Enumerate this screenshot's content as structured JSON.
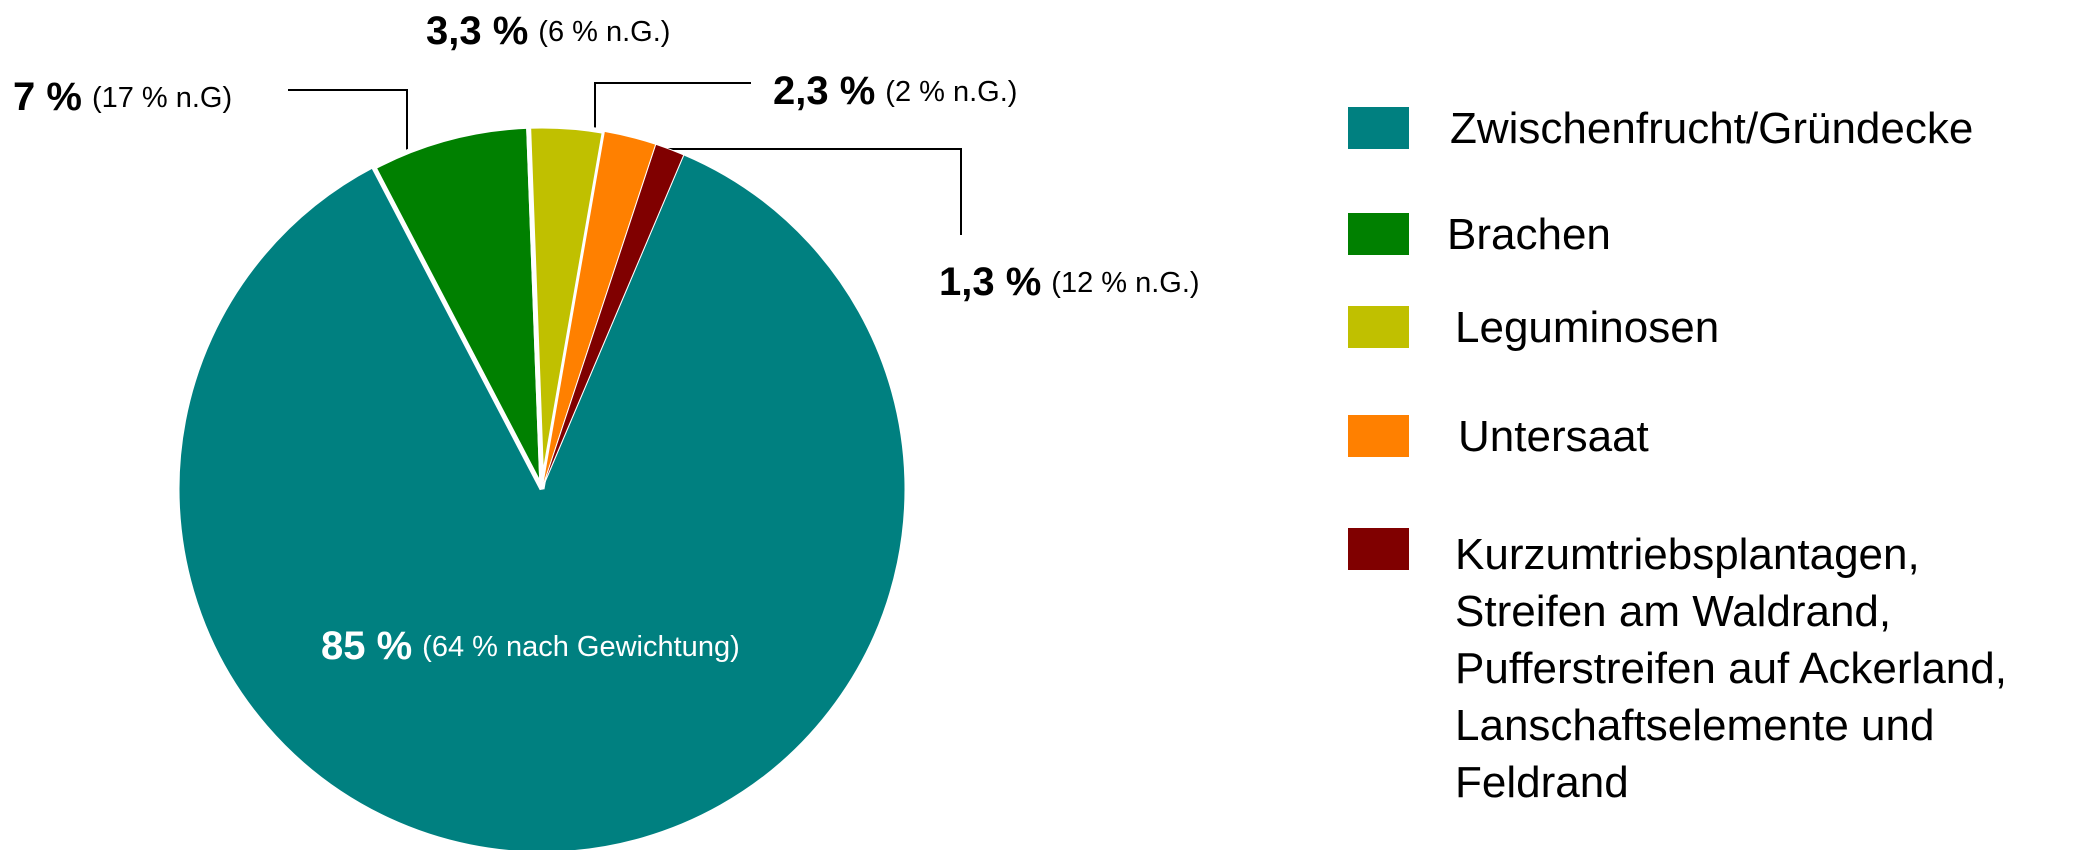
{
  "chart_data": {
    "type": "pie",
    "categories": [
      "Zwischenfrucht/Gründecke",
      "Brachen",
      "Leguminosen",
      "Untersaat",
      "Kurzumtriebsplantagen,\nStreifen am Waldrand,\nPufferstreifen auf Ackerland,\nLanschaftselemente und\nFeldrand"
    ],
    "values": [
      85,
      7,
      3.3,
      2.3,
      1.3
    ],
    "value_labels": [
      "85 %",
      "7 %",
      "3,3 %",
      "2,3 %",
      "1,3 %"
    ],
    "weighted_labels": [
      "(64 % nach Gewichtung)",
      "(17 % n.G)",
      "(6 % n.G.)",
      "(2 % n.G.)",
      "(12 % n.G.)"
    ],
    "colors": [
      "#008080",
      "#008000",
      "#c0c000",
      "#ff8000",
      "#800000"
    ],
    "legend": "right"
  }
}
